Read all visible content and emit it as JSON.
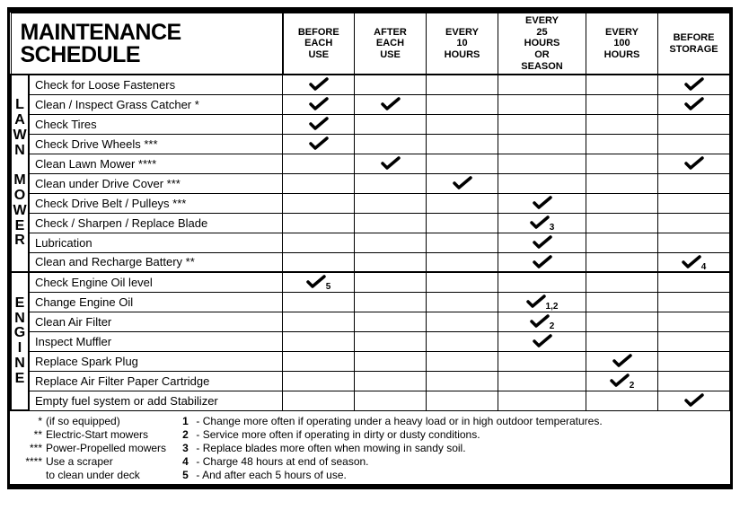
{
  "title": "MAINTENANCE SCHEDULE",
  "columns": [
    "BEFORE EACH USE",
    "AFTER EACH USE",
    "EVERY 10 HOURS",
    "EVERY 25 HOURS OR SEASON",
    "EVERY 100 HOURS",
    "BEFORE STORAGE"
  ],
  "sections": [
    {
      "label": "LAWN MOWER",
      "rows": [
        {
          "task": "Check for Loose Fasteners",
          "checks": [
            {
              "c": 0
            },
            null,
            null,
            null,
            null,
            {
              "c": 5
            }
          ]
        },
        {
          "task": "Clean / Inspect Grass Catcher *",
          "checks": [
            {
              "c": 0
            },
            {
              "c": 1
            },
            null,
            null,
            null,
            {
              "c": 5
            }
          ]
        },
        {
          "task": "Check Tires",
          "checks": [
            {
              "c": 0
            },
            null,
            null,
            null,
            null,
            null
          ]
        },
        {
          "task": "Check Drive Wheels ***",
          "checks": [
            {
              "c": 0
            },
            null,
            null,
            null,
            null,
            null
          ]
        },
        {
          "task": "Clean Lawn Mower ****",
          "checks": [
            null,
            {
              "c": 1
            },
            null,
            null,
            null,
            {
              "c": 5
            }
          ]
        },
        {
          "task": "Clean under Drive Cover ***",
          "checks": [
            null,
            null,
            {
              "c": 2
            },
            null,
            null,
            null
          ]
        },
        {
          "task": "Check Drive Belt / Pulleys ***",
          "checks": [
            null,
            null,
            null,
            {
              "c": 3
            },
            null,
            null
          ]
        },
        {
          "task": "Check / Sharpen / Replace Blade",
          "checks": [
            null,
            null,
            null,
            {
              "c": 3,
              "sub": "3"
            },
            null,
            null
          ]
        },
        {
          "task": "Lubrication",
          "checks": [
            null,
            null,
            null,
            {
              "c": 3
            },
            null,
            null
          ]
        },
        {
          "task": "Clean and Recharge Battery **",
          "checks": [
            null,
            null,
            null,
            {
              "c": 3
            },
            null,
            {
              "c": 5,
              "sub": "4"
            }
          ]
        }
      ]
    },
    {
      "label": "ENGINE",
      "rows": [
        {
          "task": "Check Engine Oil level",
          "checks": [
            {
              "c": 0,
              "sub": "5"
            },
            null,
            null,
            null,
            null,
            null
          ]
        },
        {
          "task": "Change Engine Oil",
          "checks": [
            null,
            null,
            null,
            {
              "c": 3,
              "sub": "1,2"
            },
            null,
            null
          ]
        },
        {
          "task": "Clean Air Filter",
          "checks": [
            null,
            null,
            null,
            {
              "c": 3,
              "sub": "2"
            },
            null,
            null
          ]
        },
        {
          "task": "Inspect Muffler",
          "checks": [
            null,
            null,
            null,
            {
              "c": 3
            },
            null,
            null
          ]
        },
        {
          "task": "Replace Spark Plug",
          "checks": [
            null,
            null,
            null,
            null,
            {
              "c": 4
            },
            null
          ]
        },
        {
          "task": "Replace Air Filter Paper Cartridge",
          "checks": [
            null,
            null,
            null,
            null,
            {
              "c": 4,
              "sub": "2"
            },
            null
          ]
        },
        {
          "task": "Empty fuel system or add Stabilizer",
          "checks": [
            null,
            null,
            null,
            null,
            null,
            {
              "c": 5
            }
          ]
        }
      ]
    }
  ],
  "legend": [
    {
      "mark": "*",
      "text": "(if so equipped)"
    },
    {
      "mark": "**",
      "text": "Electric-Start mowers"
    },
    {
      "mark": "***",
      "text": "Power-Propelled mowers"
    },
    {
      "mark": "****",
      "text": "Use a scraper to clean under deck"
    }
  ],
  "notes": [
    {
      "n": "1",
      "text": "Change more often if operating under a heavy load or in high outdoor temperatures."
    },
    {
      "n": "2",
      "text": "Service more often if operating in dirty or dusty conditions."
    },
    {
      "n": "3",
      "text": "Replace blades more often when mowing in sandy soil."
    },
    {
      "n": "4",
      "text": "Charge 48 hours at end of season."
    },
    {
      "n": "5",
      "text": "And after each 5 hours of use."
    }
  ],
  "style": {
    "check_color": "#000000",
    "border_color": "#000000",
    "task_fontsize": 13,
    "header_fontsize": 11
  }
}
